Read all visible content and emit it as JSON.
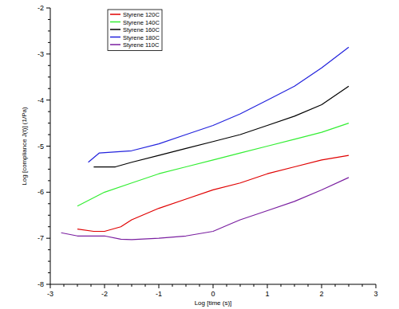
{
  "chart_data": {
    "type": "line",
    "x_label": "Log [time (s)]",
    "y_label": "Log [compliance J(t)] (1/Pa)",
    "xlim": [
      -3,
      3
    ],
    "ylim": [
      -8,
      -2
    ],
    "xticks": [
      -3,
      -2,
      -1,
      0,
      1,
      2,
      3
    ],
    "yticks": [
      -8,
      -7,
      -6,
      -5,
      -4,
      -3,
      -2
    ],
    "legend": "top-left",
    "series": [
      {
        "name": "Styrene 120C",
        "color": "#e00000",
        "x": [
          -2.5,
          -2.2,
          -2,
          -1.7,
          -1.5,
          -1,
          -0.5,
          0,
          0.5,
          1,
          1.5,
          2,
          2.5
        ],
        "values": [
          -6.8,
          -6.85,
          -6.85,
          -6.75,
          -6.6,
          -6.35,
          -6.15,
          -5.95,
          -5.8,
          -5.6,
          -5.45,
          -5.3,
          -5.2
        ]
      },
      {
        "name": "Styrene 140C",
        "color": "#33ee33",
        "x": [
          -2.5,
          -2,
          -1.5,
          -1,
          -0.5,
          0,
          0.5,
          1,
          1.5,
          2,
          2.5
        ],
        "values": [
          -6.3,
          -6.0,
          -5.8,
          -5.6,
          -5.45,
          -5.3,
          -5.15,
          -5.0,
          -4.85,
          -4.7,
          -4.5
        ]
      },
      {
        "name": "Styrene 160C",
        "color": "#000000",
        "x": [
          -2.2,
          -1.8,
          -1.5,
          -1,
          -0.5,
          0,
          0.5,
          1,
          1.5,
          2,
          2.5
        ],
        "values": [
          -5.45,
          -5.45,
          -5.35,
          -5.2,
          -5.05,
          -4.9,
          -4.75,
          -4.55,
          -4.35,
          -4.1,
          -3.7
        ]
      },
      {
        "name": "Styrene 180C",
        "color": "#2222dd",
        "x": [
          -2.3,
          -2.1,
          -1.5,
          -1,
          -0.5,
          0,
          0.5,
          1,
          1.5,
          2,
          2.5
        ],
        "values": [
          -5.35,
          -5.15,
          -5.1,
          -4.95,
          -4.75,
          -4.55,
          -4.3,
          -4.0,
          -3.7,
          -3.3,
          -2.85
        ]
      },
      {
        "name": "Styrene 110C",
        "color": "#7a1fa0",
        "x": [
          -2.8,
          -2.5,
          -2,
          -1.7,
          -1.5,
          -1,
          -0.5,
          0,
          0.3,
          0.5,
          1,
          1.5,
          2,
          2.5
        ],
        "values": [
          -6.88,
          -6.95,
          -6.95,
          -7.02,
          -7.03,
          -7.0,
          -6.95,
          -6.85,
          -6.7,
          -6.6,
          -6.4,
          -6.2,
          -5.95,
          -5.68
        ]
      }
    ]
  }
}
